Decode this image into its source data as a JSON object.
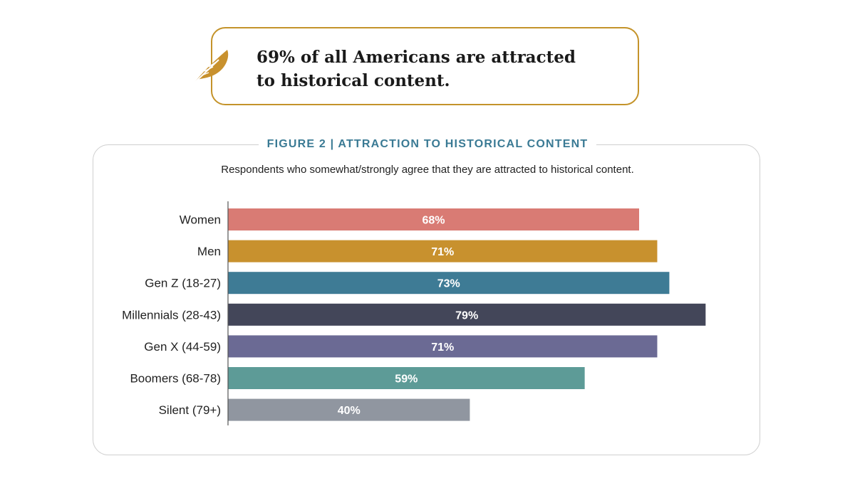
{
  "callout": {
    "headline_line1": "69% of all Americans are attracted",
    "headline_line2": "to historical content.",
    "icon": "feather-icon",
    "border_color": "#c4932a"
  },
  "chart_data": {
    "type": "bar",
    "orientation": "horizontal",
    "title": "FIGURE 2  |  ATTRACTION TO HISTORICAL CONTENT",
    "subtitle": "Respondents who somewhat/strongly agree that they are attracted to historical content.",
    "categories": [
      "Women",
      "Men",
      "Gen Z (18-27)",
      "Millennials (28-43)",
      "Gen X (44-59)",
      "Boomers (68-78)",
      "Silent (79+)"
    ],
    "values": [
      68,
      71,
      73,
      79,
      71,
      59,
      40
    ],
    "labels": [
      "68%",
      "71%",
      "73%",
      "79%",
      "71%",
      "59%",
      "40%"
    ],
    "colors": [
      "#d97b74",
      "#c8912e",
      "#3e7b95",
      "#434659",
      "#6b6a94",
      "#5d9b97",
      "#9096a0"
    ],
    "grid": false,
    "legend": "none"
  }
}
